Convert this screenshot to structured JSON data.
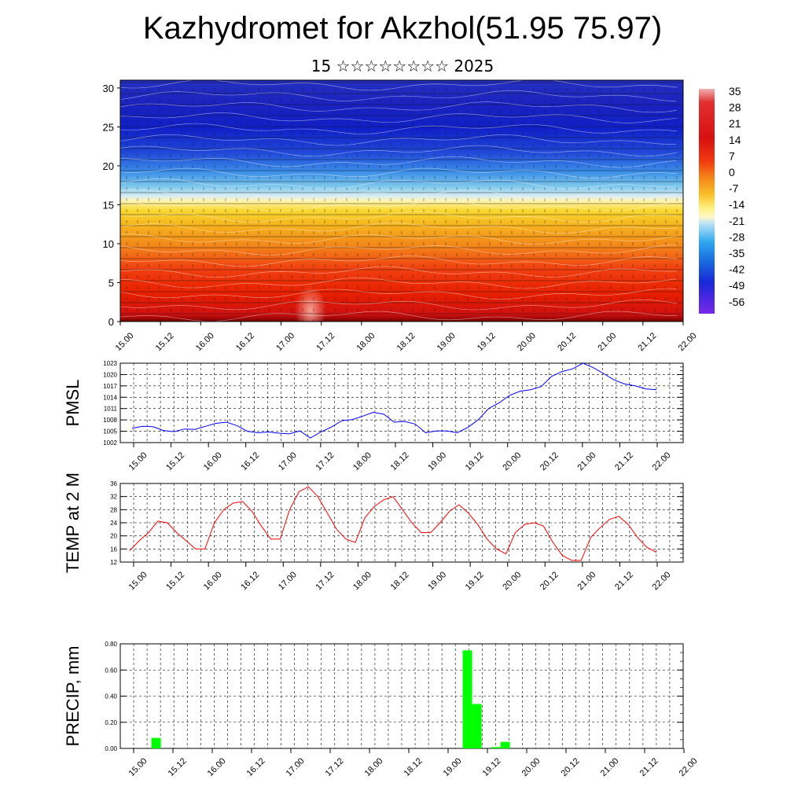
{
  "header": {
    "title": "Kazhydromet for Akzhol(51.95 75.97)",
    "subtitle": "15 ☆☆☆☆☆☆☆☆ 2025"
  },
  "time_ticks": [
    "15.00",
    "15.12",
    "16.00",
    "16.12",
    "17.00",
    "17.12",
    "18.00",
    "18.12",
    "19.00",
    "19.12",
    "20.00",
    "20.12",
    "21.00",
    "21.12",
    "22.00"
  ],
  "colors": {
    "pmsl_line": "#0000ff",
    "temp_line": "#ff0000",
    "precip_bar": "#00ff00"
  },
  "chart_data": [
    {
      "type": "heatmap",
      "title": "",
      "xlabel": "",
      "ylabel": "",
      "x_categories": [
        "15.00",
        "15.12",
        "16.00",
        "16.12",
        "17.00",
        "17.12",
        "18.00",
        "18.12",
        "19.00",
        "19.12",
        "20.00",
        "20.12",
        "21.00",
        "21.12",
        "22.00"
      ],
      "ylim": [
        0,
        31
      ],
      "yticks": [
        0,
        5,
        10,
        15,
        20,
        25,
        30
      ],
      "colorbar_labels": [
        "35",
        "28",
        "21",
        "14",
        "7",
        "0",
        "-7",
        "-14",
        "-21",
        "-28",
        "-35",
        "-42",
        "-49",
        "-56"
      ],
      "colorbar_range": [
        -63,
        42
      ],
      "overlay": "wind barbs"
    },
    {
      "type": "line",
      "title": "",
      "ylabel": "PMSL",
      "ylim": [
        1002,
        1023
      ],
      "yticks": [
        "1002",
        "1005",
        "1008",
        "1011",
        "1014",
        "1017",
        "1020",
        "1023"
      ],
      "x_range_steps": [
        0,
        42
      ],
      "x_step_hours": 4,
      "series": [
        {
          "values": [
            1005.8,
            1006.3,
            1006.2,
            1005.2,
            1004.9,
            1005.6,
            1005.5,
            1006.3,
            1007.1,
            1007.4,
            1006.5,
            1005.0,
            1004.6,
            1004.8,
            1004.5,
            1004.3,
            1005.1,
            1003.2,
            1004.8,
            1006.1,
            1007.8,
            1008.1,
            1009.0,
            1010.0,
            1009.5,
            1007.4,
            1007.6,
            1006.9,
            1004.6,
            1005.1,
            1005.1,
            1004.6,
            1006.0,
            1008.0,
            1011.0,
            1012.5,
            1014.5,
            1015.6,
            1016.0,
            1016.8,
            1019.5,
            1020.8,
            1021.5,
            1023.0,
            1021.8,
            1020.2,
            1018.5,
            1017.5,
            1017.0,
            1016.2,
            1016.0
          ]
        }
      ]
    },
    {
      "type": "line",
      "title": "",
      "ylabel": "TEMP at 2 M",
      "ylim": [
        12,
        36
      ],
      "yticks": [
        "12",
        "16",
        "20",
        "24",
        "28",
        "32",
        "36"
      ],
      "series": [
        {
          "values": [
            15.5,
            18.5,
            21.0,
            24.5,
            24.0,
            21.0,
            18.5,
            16.0,
            16.0,
            24.0,
            28.0,
            30.0,
            30.5,
            27.5,
            23.0,
            19.0,
            19.0,
            28.0,
            33.5,
            35.0,
            32.0,
            27.0,
            22.0,
            19.0,
            18.0,
            25.5,
            29.0,
            31.0,
            32.0,
            28.0,
            24.0,
            21.0,
            21.0,
            24.0,
            27.5,
            29.5,
            27.0,
            23.5,
            19.0,
            16.0,
            14.5,
            21.0,
            23.5,
            24.0,
            23.0,
            18.0,
            14.0,
            12.5,
            12.5,
            19.5,
            22.5,
            25.0,
            26.0,
            23.5,
            19.5,
            16.5,
            15.0
          ]
        }
      ]
    },
    {
      "type": "bar",
      "title": "",
      "ylabel": "PRECIP, mm",
      "ylim": [
        0,
        0.8
      ],
      "yticks": [
        "0.00",
        "0.20",
        "0.40",
        "0.60",
        "0.80"
      ],
      "bars": [
        {
          "slot": 3,
          "value": 0.08
        },
        {
          "slot": 36,
          "value": 0.75
        },
        {
          "slot": 37,
          "value": 0.34
        },
        {
          "slot": 39,
          "value": 0.01
        },
        {
          "slot": 40,
          "value": 0.05
        }
      ]
    }
  ]
}
